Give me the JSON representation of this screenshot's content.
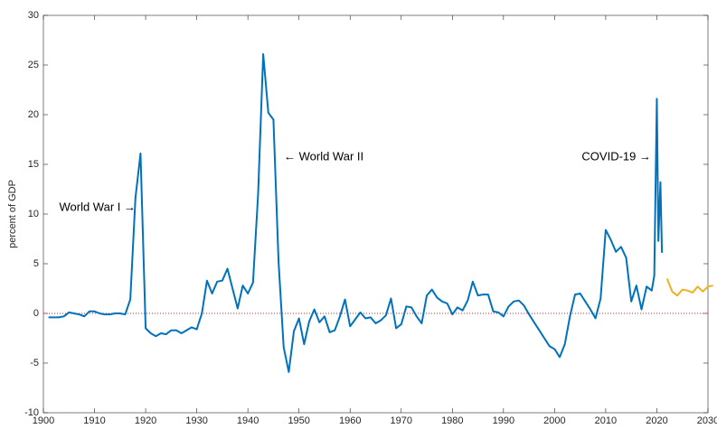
{
  "chart_data": {
    "type": "line",
    "y_label": "percent of GDP",
    "xlim": [
      1900,
      2030
    ],
    "xticks": [
      1900,
      1910,
      1920,
      1930,
      1940,
      1950,
      1960,
      1970,
      1980,
      1990,
      2000,
      2010,
      2020,
      2030
    ],
    "ylim": [
      -10,
      30
    ],
    "yticks": [
      -10,
      -5,
      0,
      5,
      10,
      15,
      20,
      25,
      30
    ],
    "grid": false,
    "zero_line": true,
    "zero_line_color": "#d62728",
    "series": [
      {
        "color": "#0072bd",
        "x": [
          1901,
          1902,
          1903,
          1904,
          1905,
          1906,
          1907,
          1908,
          1909,
          1910,
          1911,
          1912,
          1913,
          1914,
          1915,
          1916,
          1917,
          1918,
          1919,
          1920,
          1921,
          1922,
          1923,
          1924,
          1925,
          1926,
          1927,
          1928,
          1929,
          1930,
          1931,
          1932,
          1933,
          1934,
          1935,
          1936,
          1937,
          1938,
          1939,
          1940,
          1941,
          1942,
          1943,
          1944,
          1945,
          1946,
          1947,
          1948,
          1949,
          1950,
          1951,
          1952,
          1953,
          1954,
          1955,
          1956,
          1957,
          1958,
          1959,
          1960,
          1961,
          1962,
          1963,
          1964,
          1965,
          1966,
          1967,
          1968,
          1969,
          1970,
          1971,
          1972,
          1973,
          1974,
          1975,
          1976,
          1977,
          1978,
          1979,
          1980,
          1981,
          1982,
          1983,
          1984,
          1985,
          1986,
          1987,
          1988,
          1989,
          1990,
          1991,
          1992,
          1993,
          1994,
          1995,
          1996,
          1997,
          1998,
          1999,
          2000,
          2001,
          2002,
          2003,
          2004,
          2005,
          2006,
          2007,
          2008,
          2009,
          2010,
          2011,
          2012,
          2013,
          2014,
          2015,
          2016,
          2017,
          2018,
          2019,
          2019.5,
          2020,
          2020.3,
          2020.7,
          2021
        ],
        "values": [
          -0.4,
          -0.4,
          -0.4,
          -0.3,
          0.1,
          0.0,
          -0.1,
          -0.3,
          0.2,
          0.2,
          0.0,
          -0.1,
          -0.1,
          0.0,
          0.0,
          -0.1,
          1.4,
          11.6,
          16.1,
          -1.5,
          -2.0,
          -2.3,
          -2.0,
          -2.1,
          -1.7,
          -1.7,
          -2.0,
          -1.7,
          -1.4,
          -1.6,
          0.0,
          3.3,
          2.0,
          3.2,
          3.3,
          4.5,
          2.5,
          0.5,
          2.8,
          2.0,
          3.1,
          12.0,
          26.1,
          20.2,
          19.5,
          5.2,
          -3.4,
          -5.9,
          -1.8,
          -0.5,
          -3.1,
          -0.8,
          0.4,
          -0.9,
          -0.3,
          -1.9,
          -1.7,
          -0.3,
          1.4,
          -1.3,
          -0.6,
          0.1,
          -0.5,
          -0.4,
          -1.0,
          -0.7,
          -0.2,
          1.5,
          -1.5,
          -1.1,
          0.7,
          0.6,
          -0.3,
          -1.0,
          1.8,
          2.4,
          1.6,
          1.2,
          1.0,
          -0.1,
          0.6,
          0.3,
          1.3,
          3.2,
          1.8,
          1.9,
          1.9,
          0.2,
          0.1,
          -0.3,
          0.7,
          1.2,
          1.3,
          0.8,
          -0.1,
          -0.9,
          -1.7,
          -2.5,
          -3.3,
          -3.6,
          -4.4,
          -3.1,
          -0.3,
          1.9,
          2.0,
          1.2,
          0.4,
          -0.5,
          1.5,
          8.4,
          7.4,
          6.2,
          6.7,
          5.6,
          1.2,
          2.8,
          0.4,
          2.7,
          2.3,
          3.8,
          21.6,
          7.3,
          13.2,
          6.1
        ]
      },
      {
        "color": "#edb120",
        "x": [
          2022,
          2023,
          2024,
          2025,
          2026,
          2027,
          2028,
          2029,
          2030,
          2031
        ],
        "values": [
          3.5,
          2.2,
          1.8,
          2.4,
          2.3,
          2.1,
          2.7,
          2.2,
          2.7,
          2.8
        ]
      }
    ],
    "annotations": [
      {
        "text": "World War I →"
      },
      {
        "text": "← World War II"
      },
      {
        "text": "COVID-19 →"
      }
    ]
  }
}
